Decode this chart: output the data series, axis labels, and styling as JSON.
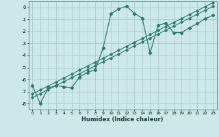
{
  "xlabel": "Humidex (Indice chaleur)",
  "bg_color": "#cce8e8",
  "grid_color": "#aacccc",
  "line_color": "#2a7a6a",
  "xlim": [
    -0.5,
    23.5
  ],
  "ylim": [
    -8.5,
    0.5
  ],
  "yticks": [
    0,
    -1,
    -2,
    -3,
    -4,
    -5,
    -6,
    -7,
    -8
  ],
  "xticks": [
    0,
    1,
    2,
    3,
    4,
    5,
    6,
    7,
    8,
    9,
    10,
    11,
    12,
    13,
    14,
    15,
    16,
    17,
    18,
    19,
    20,
    21,
    22,
    23
  ],
  "curve1_x": [
    0,
    1,
    2,
    3,
    4,
    5,
    6,
    7,
    8,
    9,
    10,
    11,
    12,
    13,
    14,
    15,
    16,
    17,
    18,
    19,
    20,
    21,
    22,
    23
  ],
  "curve1_y": [
    -6.5,
    -8.0,
    -6.7,
    -6.5,
    -6.6,
    -6.7,
    -5.8,
    -5.4,
    -5.2,
    -3.4,
    -0.55,
    -0.12,
    0.1,
    -0.5,
    -0.9,
    -3.8,
    -1.5,
    -1.3,
    -2.1,
    -2.1,
    -1.7,
    -1.35,
    -0.95,
    -0.65
  ],
  "line2_x": [
    0,
    1,
    2,
    3,
    4,
    5,
    6,
    7,
    8,
    9,
    10,
    11,
    12,
    13,
    14,
    15,
    16,
    17,
    18,
    19,
    20,
    21,
    22,
    23
  ],
  "line2_y": [
    -7.5,
    -7.17,
    -6.84,
    -6.51,
    -6.18,
    -5.85,
    -5.52,
    -5.19,
    -4.86,
    -4.53,
    -4.2,
    -3.87,
    -3.54,
    -3.21,
    -2.88,
    -2.55,
    -2.22,
    -1.89,
    -1.56,
    -1.23,
    -0.9,
    -0.57,
    -0.24,
    0.09
  ],
  "line3_x": [
    0,
    1,
    2,
    3,
    4,
    5,
    6,
    7,
    8,
    9,
    10,
    11,
    12,
    13,
    14,
    15,
    16,
    17,
    18,
    19,
    20,
    21,
    22,
    23
  ],
  "line3_y": [
    -7.2,
    -6.87,
    -6.54,
    -6.21,
    -5.88,
    -5.55,
    -5.22,
    -4.89,
    -4.56,
    -4.23,
    -3.9,
    -3.57,
    -3.24,
    -2.91,
    -2.58,
    -2.25,
    -1.92,
    -1.59,
    -1.26,
    -0.93,
    -0.6,
    -0.27,
    0.06,
    0.39
  ]
}
